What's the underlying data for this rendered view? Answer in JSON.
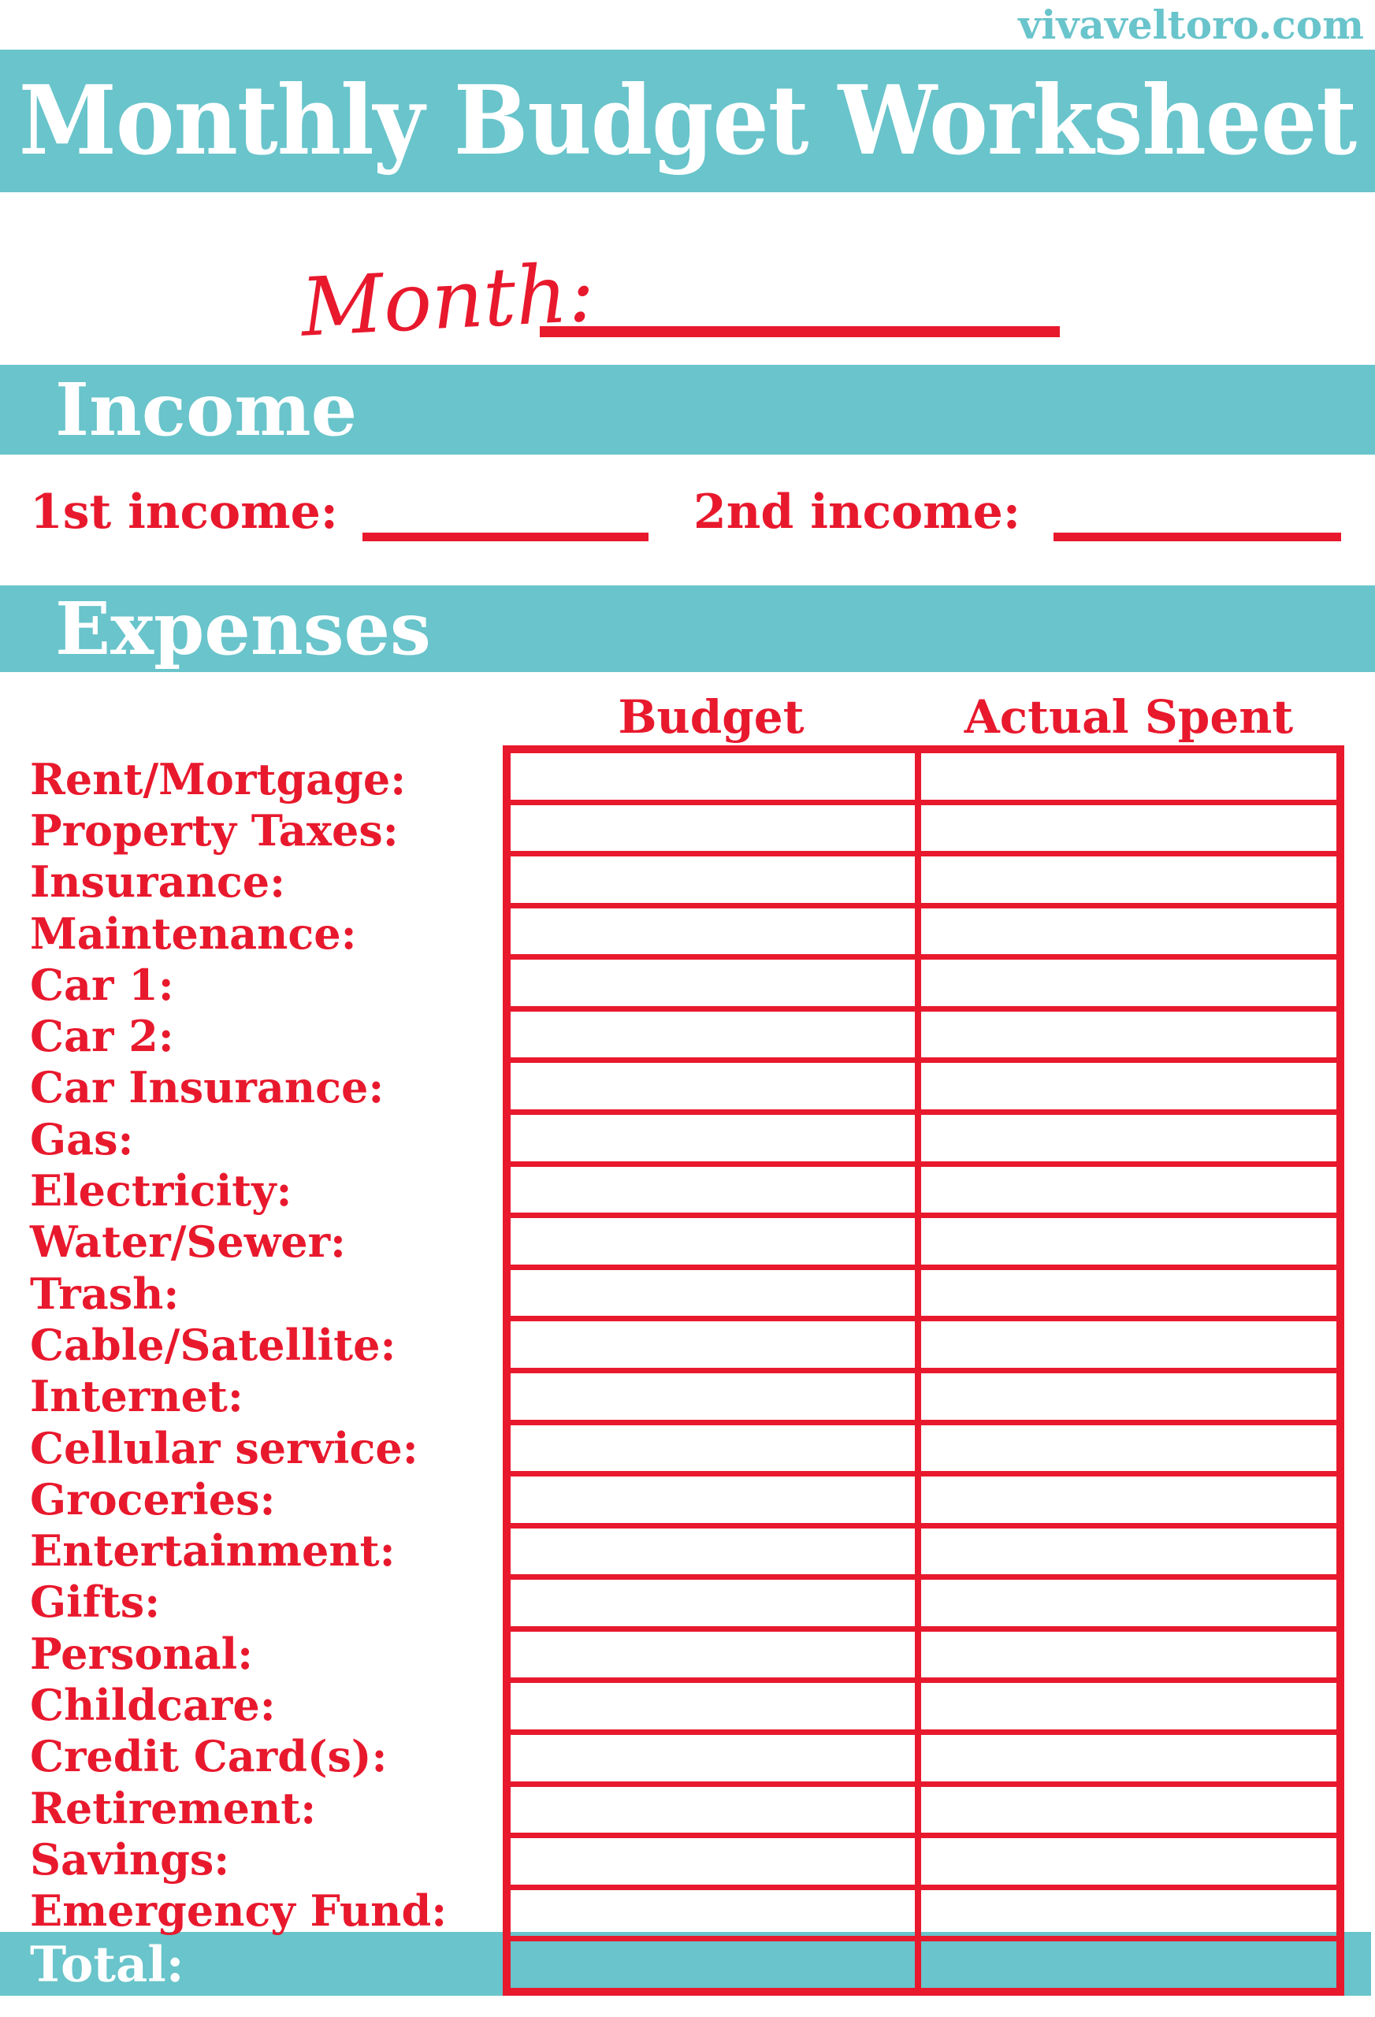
{
  "site_credit": "vivaveltoro.com",
  "title": "Monthly Budget Worksheet",
  "month": {
    "label": "Month:",
    "value": ""
  },
  "income_section": {
    "heading": "Income",
    "fields": [
      {
        "label": "1st income:",
        "value": ""
      },
      {
        "label": "2nd income:",
        "value": ""
      }
    ]
  },
  "expenses_section": {
    "heading": "Expenses",
    "columns": [
      "Budget",
      "Actual Spent"
    ],
    "rows": [
      "Rent/Mortgage:",
      "Property Taxes:",
      "Insurance:",
      "Maintenance:",
      "Car 1:",
      "Car 2:",
      "Car Insurance:",
      "Gas:",
      "Electricity:",
      "Water/Sewer:",
      "Trash:",
      "Cable/Satellite:",
      "Internet:",
      "Cellular service:",
      "Groceries:",
      "Entertainment:",
      "Gifts:",
      "Personal:",
      "Childcare:",
      "Credit Card(s):",
      "Retirement:",
      "Savings:",
      "Emergency Fund:"
    ],
    "total_label": "Total:",
    "cell_values": ""
  },
  "colors": {
    "teal": "#69C4CB",
    "red": "#E8192D",
    "white": "#FFFFFF"
  }
}
